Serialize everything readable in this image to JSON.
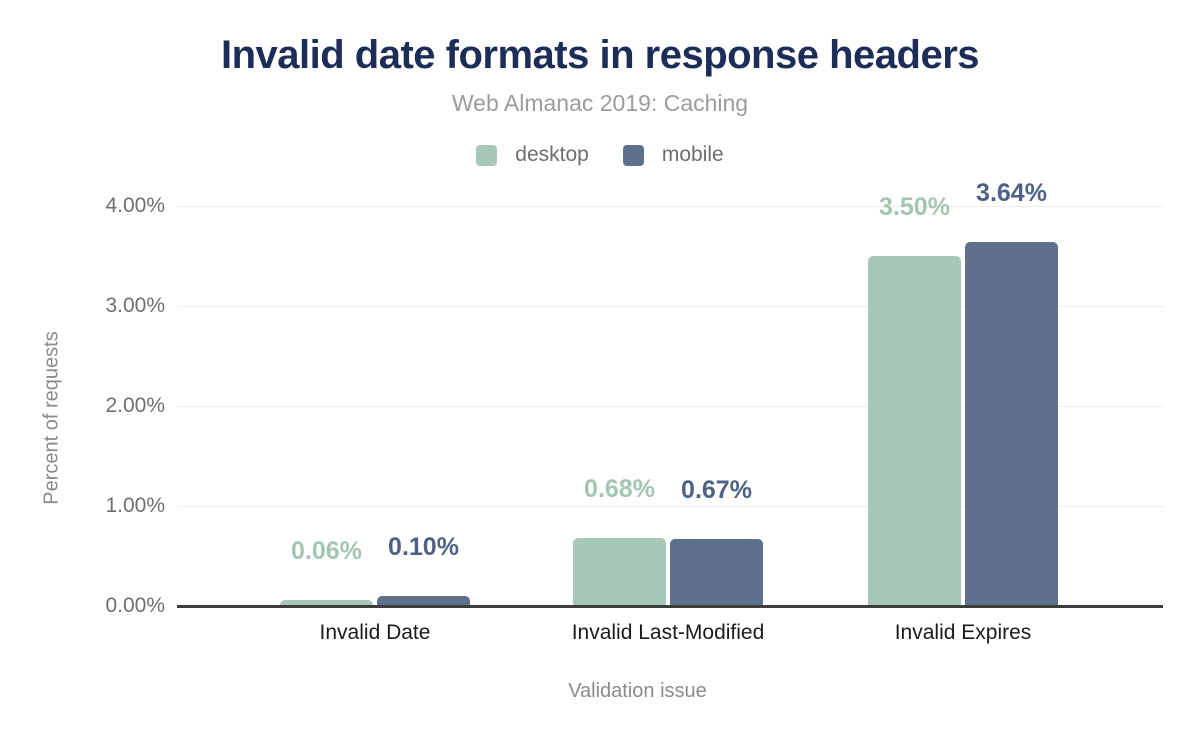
{
  "chart_data": {
    "type": "bar",
    "title": "Invalid date formats in response headers",
    "subtitle": "Web Almanac 2019: Caching",
    "xlabel": "Validation issue",
    "ylabel": "Percent of requests",
    "categories": [
      "Invalid Date",
      "Invalid Last-Modified",
      "Invalid Expires"
    ],
    "series": [
      {
        "name": "desktop",
        "color": "#a7c8b8",
        "label_color": "#a3c6b2",
        "values": [
          0.06,
          0.68,
          3.5
        ],
        "value_labels": [
          "0.06%",
          "0.68%",
          "3.50%"
        ]
      },
      {
        "name": "mobile",
        "color": "#5f708d",
        "label_color": "#4d6286",
        "values": [
          0.1,
          0.67,
          3.64
        ],
        "value_labels": [
          "0.10%",
          "0.67%",
          "3.64%"
        ]
      }
    ],
    "y_axis": {
      "ticks": [
        "4.00%",
        "3.00%",
        "2.00%",
        "1.00%",
        "0.00%"
      ],
      "ylim": [
        0,
        4
      ]
    },
    "grid": true,
    "legend_position": "top",
    "colors": {
      "title": "#1c2e57",
      "subtitle": "#9c9c9c",
      "axis_text": "#6f6f6f",
      "category_text": "#1b1b1b",
      "gridline": "#ededed",
      "axis_line": "#3d3d3d",
      "background": "#ffffff"
    }
  }
}
